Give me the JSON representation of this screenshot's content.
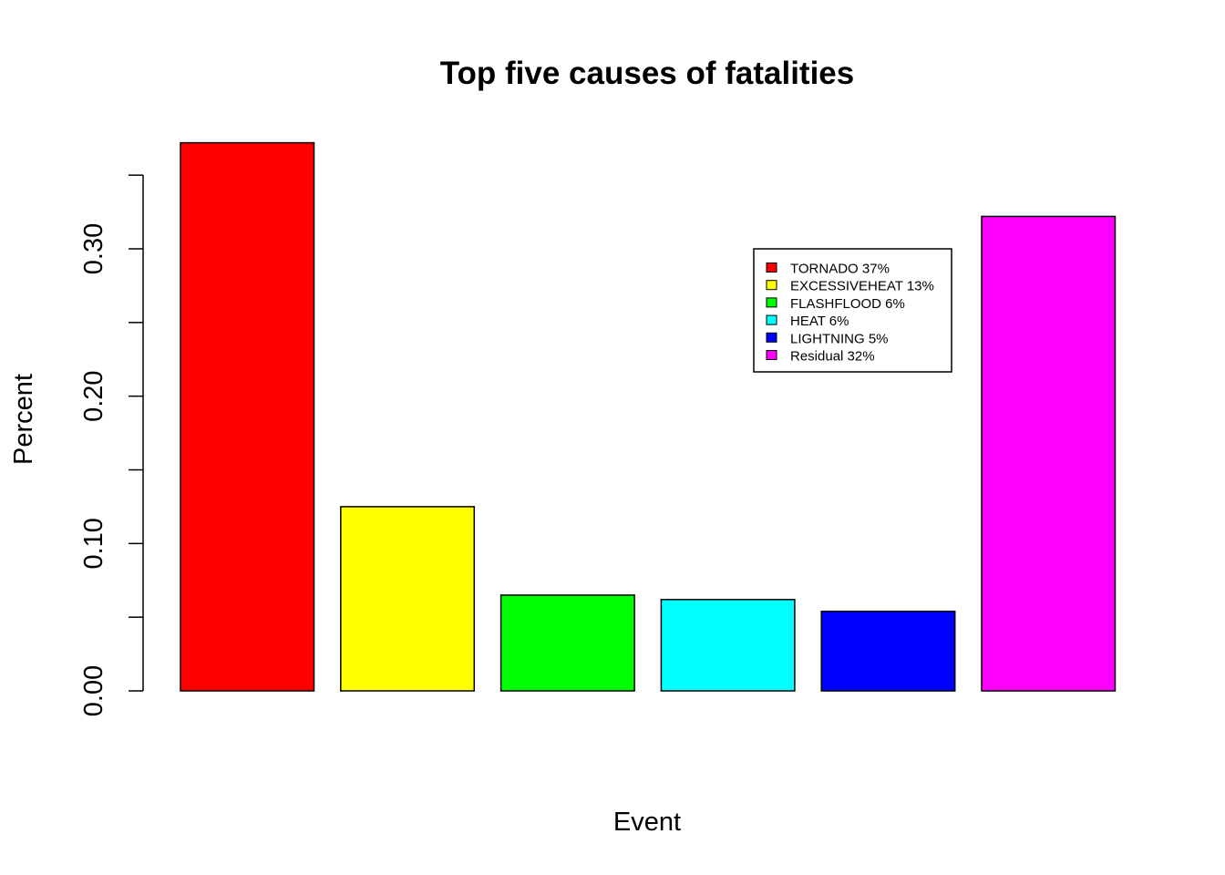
{
  "chart_data": {
    "type": "bar",
    "title": "Top five causes of fatalities",
    "xlabel": "Event",
    "ylabel": "Percent",
    "categories": [
      "TORNADO",
      "EXCESSIVEHEAT",
      "FLASHFLOOD",
      "HEAT",
      "LIGHTNING",
      "Residual"
    ],
    "values": [
      0.372,
      0.125,
      0.065,
      0.062,
      0.054,
      0.322
    ],
    "colors": [
      "#ff0000",
      "#ffff00",
      "#00ff00",
      "#00ffff",
      "#0000ff",
      "#ff00ff"
    ],
    "ylim": [
      0,
      0.36
    ],
    "yticks": [
      0.0,
      0.05,
      0.1,
      0.15,
      0.2,
      0.25,
      0.3,
      0.35
    ],
    "ytick_labels": [
      "0.00",
      "",
      "0.10",
      "",
      "0.20",
      "",
      "0.30",
      ""
    ],
    "legend": {
      "position": "top-right",
      "entries": [
        {
          "label": "TORNADO 37%",
          "color": "#ff0000"
        },
        {
          "label": "EXCESSIVEHEAT 13%",
          "color": "#ffff00"
        },
        {
          "label": "FLASHFLOOD 6%",
          "color": "#00ff00"
        },
        {
          "label": "HEAT 6%",
          "color": "#00ffff"
        },
        {
          "label": "LIGHTNING 5%",
          "color": "#0000ff"
        },
        {
          "label": "Residual 32%",
          "color": "#ff00ff"
        }
      ]
    },
    "grid": false
  }
}
